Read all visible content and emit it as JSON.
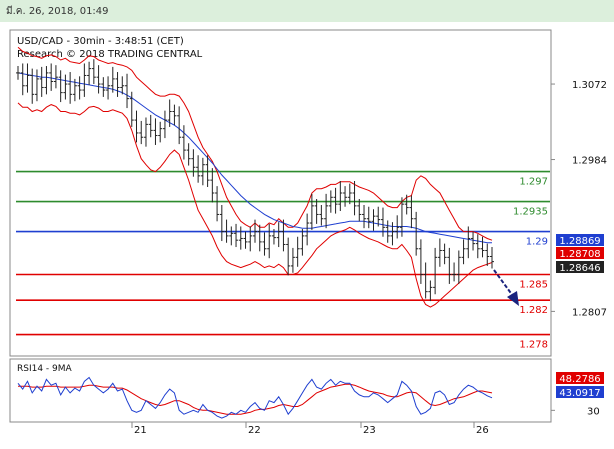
{
  "header": {
    "datetime": "มี.ค. 26, 2018, 01:49"
  },
  "chart_data": {
    "type": "line",
    "title": "USD/CAD - 30min - 3:48:51 (CET)",
    "subtitle": "Research © 2018 TRADING CENTRAL",
    "y_ticks": [
      "1.3072",
      "1.2984",
      "1.2807"
    ],
    "x_ticks": [
      "21",
      "22",
      "23",
      "26"
    ],
    "levels": [
      {
        "label": "1.297",
        "value": 1.297,
        "color": "#2e8b2e"
      },
      {
        "label": "1.2935",
        "value": 1.2935,
        "color": "#2e8b2e"
      },
      {
        "label": "1.29",
        "value": 1.29,
        "color": "#1f3fd0"
      },
      {
        "label": "1.285",
        "value": 1.285,
        "color": "#e00000"
      },
      {
        "label": "1.282",
        "value": 1.282,
        "color": "#e00000"
      },
      {
        "label": "1.278",
        "value": 1.278,
        "color": "#e00000"
      }
    ],
    "price_tags": [
      {
        "label": "1.28869",
        "value": 1.28869,
        "color": "#1f3fd0"
      },
      {
        "label": "1.28708",
        "value": 1.28708,
        "color": "#e00000"
      },
      {
        "label": "1.28646",
        "value": 1.28646,
        "color": "#222222"
      }
    ],
    "ylim": [
      1.2755,
      1.3135
    ],
    "price_series": [
      1.3085,
      1.307,
      1.3082,
      1.306,
      1.3078,
      1.3068,
      1.3085,
      1.3075,
      1.308,
      1.3062,
      1.3072,
      1.306,
      1.307,
      1.3065,
      1.3082,
      1.309,
      1.308,
      1.3072,
      1.3065,
      1.307,
      1.3078,
      1.3068,
      1.307,
      1.3055,
      1.303,
      1.3015,
      1.301,
      1.3025,
      1.3018,
      1.3012,
      1.302,
      1.303,
      1.304,
      1.3035,
      1.301,
      1.2995,
      1.2985,
      1.2975,
      1.2965,
      1.2978,
      1.296,
      1.2945,
      1.292,
      1.29,
      1.2895,
      1.2898,
      1.289,
      1.2892,
      1.2888,
      1.2895,
      1.29,
      1.2888,
      1.288,
      1.2895,
      1.2893,
      1.29,
      1.2885,
      1.286,
      1.287,
      1.288,
      1.2895,
      1.291,
      1.293,
      1.292,
      1.2915,
      1.293,
      1.294,
      1.2932,
      1.2945,
      1.294,
      1.2945,
      1.293,
      1.292,
      1.2915,
      1.2912,
      1.2918,
      1.2914,
      1.2905,
      1.2895,
      1.29,
      1.2905,
      1.2932,
      1.2928,
      1.2915,
      1.288,
      1.285,
      1.283,
      1.2835,
      1.287,
      1.2878,
      1.287,
      1.285,
      1.285,
      1.287,
      1.288,
      1.2892,
      1.2886,
      1.288,
      1.2878,
      1.2871,
      1.2865
    ],
    "upper_band": [
      1.3115,
      1.311,
      1.3108,
      1.3105,
      1.3104,
      1.3102,
      1.3105,
      1.3106,
      1.3104,
      1.31,
      1.3102,
      1.3098,
      1.3097,
      1.3096,
      1.31,
      1.3105,
      1.3104,
      1.31,
      1.3098,
      1.3096,
      1.3097,
      1.3095,
      1.3094,
      1.3092,
      1.3088,
      1.308,
      1.3075,
      1.307,
      1.3065,
      1.306,
      1.3058,
      1.3058,
      1.306,
      1.306,
      1.3058,
      1.305,
      1.304,
      1.3025,
      1.301,
      1.2998,
      1.299,
      1.2982,
      1.297,
      1.2955,
      1.294,
      1.293,
      1.292,
      1.2912,
      1.2908,
      1.2905,
      1.291,
      1.2905,
      1.2905,
      1.291,
      1.2908,
      1.2915,
      1.291,
      1.2905,
      1.2905,
      1.291,
      1.292,
      1.293,
      1.2945,
      1.295,
      1.295,
      1.2952,
      1.2955,
      1.2955,
      1.2958,
      1.2958,
      1.2958,
      1.2955,
      1.2952,
      1.295,
      1.2948,
      1.2945,
      1.294,
      1.2935,
      1.293,
      1.2928,
      1.2928,
      1.2935,
      1.294,
      1.2942,
      1.296,
      1.2965,
      1.2962,
      1.2955,
      1.295,
      1.2945,
      1.2935,
      1.2925,
      1.2915,
      1.2905,
      1.29,
      1.29,
      1.29,
      1.2898,
      1.2895,
      1.2892,
      1.289
    ],
    "lower_band": [
      1.305,
      1.3045,
      1.3045,
      1.304,
      1.3042,
      1.304,
      1.3045,
      1.3048,
      1.3046,
      1.304,
      1.304,
      1.3038,
      1.3038,
      1.3036,
      1.304,
      1.3045,
      1.3046,
      1.3044,
      1.304,
      1.304,
      1.3042,
      1.304,
      1.3038,
      1.3032,
      1.3018,
      1.3,
      1.2985,
      1.2978,
      1.2972,
      1.297,
      1.2975,
      1.2982,
      1.299,
      1.2995,
      1.299,
      1.2975,
      1.296,
      1.2942,
      1.2925,
      1.2915,
      1.2905,
      1.2895,
      1.2882,
      1.2872,
      1.2865,
      1.2862,
      1.286,
      1.2858,
      1.286,
      1.2862,
      1.2865,
      1.2862,
      1.2858,
      1.286,
      1.2858,
      1.2862,
      1.2858,
      1.285,
      1.285,
      1.2852,
      1.2858,
      1.2865,
      1.2872,
      1.288,
      1.2885,
      1.289,
      1.2895,
      1.2898,
      1.29,
      1.2902,
      1.2905,
      1.2902,
      1.2898,
      1.2895,
      1.2892,
      1.289,
      1.2888,
      1.2885,
      1.2882,
      1.288,
      1.288,
      1.2885,
      1.2878,
      1.287,
      1.2845,
      1.2825,
      1.2815,
      1.2812,
      1.2815,
      1.282,
      1.2825,
      1.283,
      1.2835,
      1.284,
      1.2845,
      1.285,
      1.2855,
      1.2858,
      1.286,
      1.2862,
      1.2864
    ],
    "ma_series": [
      1.3085,
      1.3084,
      1.3083,
      1.3082,
      1.3081,
      1.308,
      1.308,
      1.3079,
      1.3078,
      1.3077,
      1.3076,
      1.3075,
      1.3074,
      1.3073,
      1.3072,
      1.3071,
      1.307,
      1.3069,
      1.3068,
      1.3067,
      1.3066,
      1.3064,
      1.3062,
      1.3059,
      1.3056,
      1.3052,
      1.3048,
      1.3044,
      1.304,
      1.3036,
      1.3033,
      1.303,
      1.3027,
      1.3024,
      1.302,
      1.3015,
      1.301,
      1.3004,
      1.2998,
      1.2992,
      1.2986,
      1.298,
      1.2973,
      1.2966,
      1.296,
      1.2954,
      1.2948,
      1.2942,
      1.2937,
      1.2932,
      1.2928,
      1.2924,
      1.292,
      1.2917,
      1.2914,
      1.2912,
      1.291,
      1.2908,
      1.2906,
      1.2905,
      1.2904,
      1.2904,
      1.2904,
      1.2905,
      1.2906,
      1.2907,
      1.2908,
      1.2909,
      1.291,
      1.2911,
      1.2912,
      1.2912,
      1.2912,
      1.2912,
      1.2911,
      1.291,
      1.2909,
      1.2908,
      1.2907,
      1.2906,
      1.2906,
      1.2906,
      1.2906,
      1.2905,
      1.2904,
      1.2902,
      1.29,
      1.2899,
      1.2898,
      1.2897,
      1.2896,
      1.2895,
      1.2894,
      1.2893,
      1.2892,
      1.2891,
      1.289,
      1.2889,
      1.2888,
      1.2887,
      1.2887
    ],
    "rsi": {
      "label": "RSI14 - 9MA",
      "tags": [
        {
          "label": "48.2786",
          "value": 48.2786,
          "color": "#e00000"
        },
        {
          "label": "43.0917",
          "value": 43.0917,
          "color": "#1f3fd0"
        }
      ],
      "ticks": [
        "30"
      ],
      "ylim": [
        20,
        80
      ],
      "rsi_series": [
        58,
        52,
        60,
        48,
        55,
        50,
        62,
        56,
        58,
        46,
        54,
        48,
        53,
        50,
        60,
        64,
        56,
        52,
        48,
        52,
        58,
        50,
        52,
        40,
        30,
        28,
        30,
        40,
        36,
        32,
        38,
        46,
        52,
        48,
        30,
        26,
        28,
        30,
        28,
        36,
        30,
        28,
        24,
        22,
        24,
        28,
        26,
        30,
        28,
        34,
        38,
        32,
        30,
        40,
        38,
        44,
        36,
        26,
        32,
        40,
        48,
        56,
        62,
        54,
        52,
        58,
        62,
        56,
        60,
        58,
        58,
        50,
        46,
        44,
        44,
        48,
        46,
        42,
        38,
        42,
        46,
        60,
        56,
        50,
        34,
        26,
        28,
        32,
        48,
        50,
        46,
        36,
        38,
        46,
        52,
        56,
        54,
        50,
        48,
        45,
        43
      ],
      "ma_series": [
        55,
        55,
        55,
        54,
        54,
        54,
        55,
        55,
        55,
        54,
        54,
        54,
        54,
        54,
        55,
        56,
        56,
        55,
        54,
        54,
        54,
        53,
        53,
        51,
        48,
        45,
        42,
        40,
        38,
        36,
        35,
        36,
        38,
        40,
        40,
        38,
        36,
        33,
        31,
        30,
        30,
        29,
        28,
        27,
        26,
        26,
        26,
        26,
        27,
        28,
        30,
        31,
        31,
        32,
        33,
        35,
        36,
        35,
        34,
        34,
        36,
        40,
        44,
        48,
        50,
        52,
        54,
        55,
        56,
        57,
        57,
        56,
        54,
        52,
        50,
        49,
        48,
        47,
        45,
        44,
        44,
        46,
        48,
        49,
        48,
        44,
        40,
        36,
        35,
        36,
        38,
        40,
        42,
        43,
        44,
        46,
        48,
        50,
        50,
        49,
        48
      ]
    }
  }
}
